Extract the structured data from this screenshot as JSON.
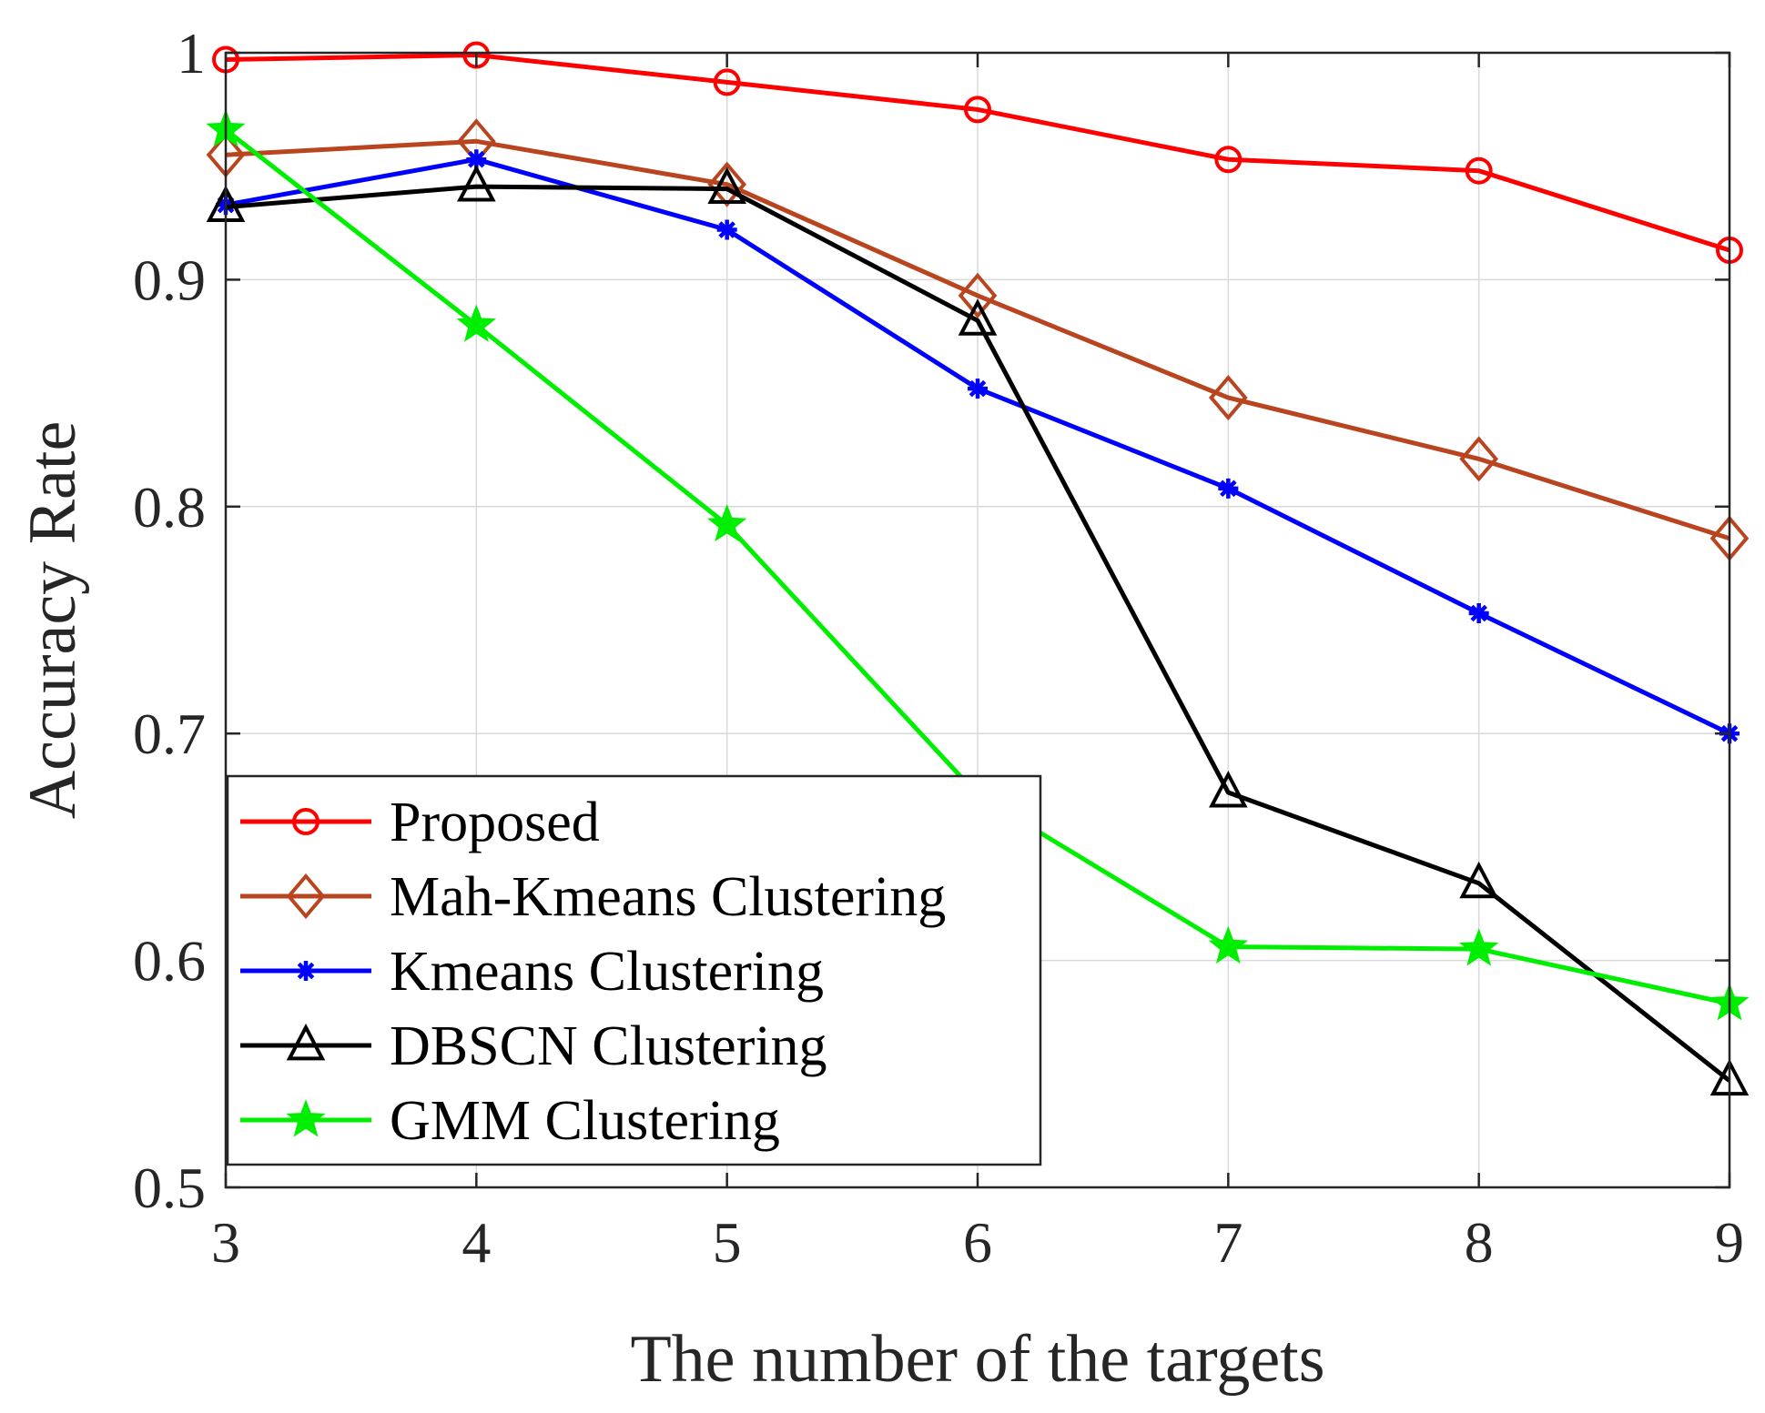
{
  "chart_data": {
    "type": "line",
    "title": "",
    "xlabel": "The number of the targets",
    "ylabel": "Accuracy Rate",
    "x": [
      3,
      4,
      5,
      6,
      7,
      8,
      9
    ],
    "xlim": [
      3,
      9
    ],
    "ylim": [
      0.5,
      1.0
    ],
    "xticks": [
      "3",
      "4",
      "5",
      "6",
      "7",
      "8",
      "9"
    ],
    "yticks": [
      "0.5",
      "0.6",
      "0.7",
      "0.8",
      "0.9",
      "1"
    ],
    "ytick_values": [
      0.5,
      0.6,
      0.7,
      0.8,
      0.9,
      1.0
    ],
    "grid": true,
    "legend_position": "bottom-left",
    "series": [
      {
        "name": "Proposed",
        "color": "#ff0000",
        "marker": "circle",
        "values": [
          0.997,
          0.999,
          0.987,
          0.975,
          0.953,
          0.948,
          0.913
        ]
      },
      {
        "name": "Mah-Kmeans Clustering",
        "color": "#b8451f",
        "marker": "diamond",
        "values": [
          0.955,
          0.961,
          0.942,
          0.893,
          0.848,
          0.821,
          0.786
        ]
      },
      {
        "name": "Kmeans Clustering",
        "color": "#0000ff",
        "marker": "asterisk",
        "values": [
          0.933,
          0.953,
          0.922,
          0.852,
          0.808,
          0.753,
          0.7
        ]
      },
      {
        "name": "DBSCN Clustering",
        "color": "#000000",
        "marker": "triangle",
        "values": [
          0.932,
          0.941,
          0.94,
          0.882,
          0.674,
          0.634,
          0.547
        ]
      },
      {
        "name": "GMM Clustering",
        "color": "#00ee00",
        "marker": "star",
        "values": [
          0.966,
          0.88,
          0.792,
          0.673,
          0.606,
          0.605,
          0.581
        ]
      }
    ]
  }
}
